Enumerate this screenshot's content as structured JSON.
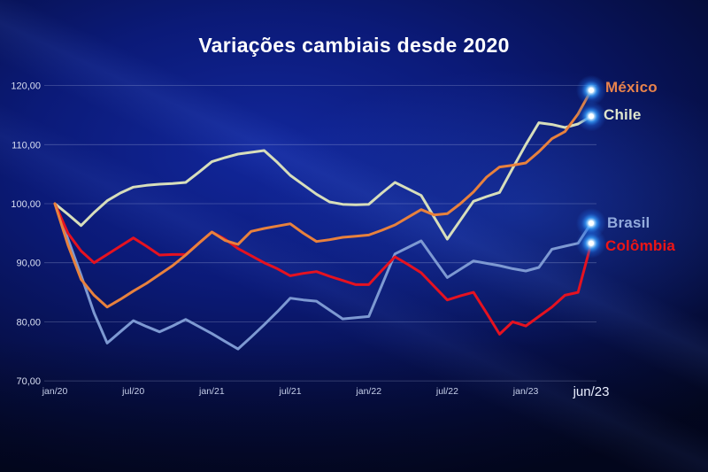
{
  "title": "Variações cambiais desde 2020",
  "chart_data": {
    "type": "line",
    "title": "Variações cambiais desde 2020",
    "xlabel": "",
    "ylabel": "",
    "ylim": [
      70,
      120
    ],
    "grid": "horizontal",
    "legend_position": "right-of-line-endpoints",
    "x_unit": "months since jan/20 (monthly points, jan/20 = 100 base index)",
    "x_ticks": [
      {
        "label": "jan/20",
        "month": 0,
        "emphasized": false
      },
      {
        "label": "jul/20",
        "month": 6,
        "emphasized": false
      },
      {
        "label": "jan/21",
        "month": 12,
        "emphasized": false
      },
      {
        "label": "jul/21",
        "month": 18,
        "emphasized": false
      },
      {
        "label": "jan/22",
        "month": 24,
        "emphasized": false
      },
      {
        "label": "jul/22",
        "month": 30,
        "emphasized": false
      },
      {
        "label": "jan/23",
        "month": 36,
        "emphasized": false
      },
      {
        "label": "jun/23",
        "month": 41,
        "emphasized": true
      }
    ],
    "y_ticks": [
      {
        "value": 120,
        "label": "120,00"
      },
      {
        "value": 110,
        "label": "110,00"
      },
      {
        "value": 100,
        "label": "100,00"
      },
      {
        "value": 90,
        "label": "90,00"
      },
      {
        "value": 80,
        "label": "80,00"
      },
      {
        "value": 70,
        "label": "70,00"
      }
    ],
    "series": [
      {
        "id": "mexico",
        "name": "México",
        "color": "#e8813d",
        "label_color": "#e8834c",
        "values": [
          100,
          93,
          87.2,
          84.5,
          82.5,
          83.8,
          85.2,
          86.5,
          88,
          89.5,
          91.3,
          93.3,
          95.2,
          93.8,
          93.1,
          95.3,
          95.8,
          96.2,
          96.6,
          95,
          93.6,
          93.9,
          94.3,
          94.5,
          94.7,
          95.5,
          96.4,
          97.7,
          99,
          98.1,
          98.3,
          100,
          102,
          104.5,
          106.2,
          106.5,
          106.9,
          108.8,
          111,
          112.2,
          115.2,
          119.2
        ]
      },
      {
        "id": "chile",
        "name": "Chile",
        "color": "#d7debb",
        "label_color": "#dfe6cd",
        "values": [
          100,
          98.2,
          96.3,
          98.5,
          100.5,
          101.8,
          102.8,
          103.1,
          103.3,
          103.4,
          103.6,
          105.3,
          107.1,
          107.8,
          108.4,
          108.7,
          109,
          107,
          104.8,
          103.2,
          101.6,
          100.3,
          99.9,
          99.8,
          99.9,
          101.8,
          103.6,
          102.5,
          101.4,
          97.7,
          94,
          97.2,
          100.4,
          101.2,
          101.9,
          106,
          110,
          113.7,
          113.4,
          112.9,
          113.5,
          114.8
        ]
      },
      {
        "id": "brasil",
        "name": "Brasil",
        "color": "#7d99d2",
        "label_color": "#93abdd",
        "values": [
          100,
          94,
          87.9,
          81.5,
          76.4,
          78.3,
          80.2,
          79.2,
          78.3,
          79.3,
          80.4,
          79.2,
          78,
          76.7,
          75.4,
          77.4,
          79.5,
          81.7,
          84,
          83.7,
          83.5,
          82,
          80.5,
          80.7,
          80.9,
          86.2,
          91.5,
          92.6,
          93.7,
          90.6,
          87.5,
          88.9,
          90.3,
          89.9,
          89.5,
          89,
          88.6,
          89.2,
          92.3,
          92.8,
          93.3,
          96.7
        ]
      },
      {
        "id": "colombia",
        "name": "Colômbia",
        "color": "#e51220",
        "label_color": "#ee1515",
        "values": [
          100,
          95,
          92,
          90,
          91.4,
          92.8,
          94.2,
          92.8,
          91.3,
          91.4,
          91.4,
          93.3,
          95.2,
          94,
          92.4,
          91.2,
          90,
          89,
          87.8,
          88.2,
          88.5,
          87.7,
          87,
          86.3,
          86.3,
          88.7,
          91,
          89.7,
          88.3,
          86,
          83.7,
          84.4,
          85,
          81.5,
          77.9,
          80,
          79.3,
          80.9,
          82.5,
          84.5,
          85,
          93.3
        ]
      }
    ],
    "endpoint_marker": {
      "glow_color": "#38a0ff",
      "core_color": "#ffffff"
    },
    "grid_color": "rgba(200,210,240,0.30)",
    "tick_text_color": "#d9dff2",
    "title_color": "#ffffff"
  }
}
